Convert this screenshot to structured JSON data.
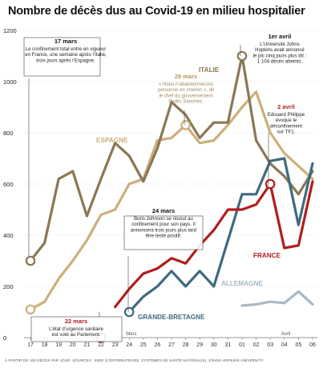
{
  "chart_data": {
    "type": "line",
    "title": "Nombre de décès dus au Covid-19 en milieu hospitalier",
    "x": [
      "17",
      "18",
      "19",
      "20",
      "21",
      "22",
      "23",
      "24",
      "25",
      "26",
      "27",
      "28",
      "29",
      "30",
      "31",
      "01",
      "02",
      "03",
      "04",
      "05",
      "06"
    ],
    "month_labels": [
      {
        "text": "Mars",
        "at": "24"
      },
      {
        "text": "Avril",
        "at": "04"
      }
    ],
    "ylim": [
      0,
      1200
    ],
    "yticks": [
      0,
      200,
      400,
      600,
      800,
      1000,
      1200
    ],
    "grid": true,
    "series": [
      {
        "name": "ITALIE",
        "color": "#8a7755",
        "values": [
          300,
          370,
          620,
          650,
          475,
          620,
          760,
          710,
          610,
          740,
          920,
          870,
          780,
          840,
          840,
          1100,
          770,
          680,
          630,
          560,
          650
        ]
      },
      {
        "name": "ESPAGNE",
        "color": "#cbb07a",
        "values": [
          110,
          140,
          230,
          300,
          380,
          480,
          500,
          600,
          620,
          770,
          780,
          830,
          760,
          770,
          830,
          900,
          960,
          800,
          720,
          670,
          620
        ]
      },
      {
        "name": "FRANCE",
        "color": "#b21d1d",
        "values": [
          null,
          null,
          null,
          null,
          null,
          null,
          120,
          190,
          250,
          270,
          310,
          290,
          360,
          420,
          500,
          500,
          520,
          600,
          350,
          360,
          610
        ]
      },
      {
        "name": "GRANDE-BRETAGNE",
        "color": "#3f6a7f",
        "values": [
          null,
          null,
          null,
          null,
          null,
          null,
          null,
          100,
          160,
          200,
          260,
          200,
          260,
          200,
          380,
          560,
          560,
          690,
          700,
          440,
          680
        ]
      },
      {
        "name": "ALLEMAGNE",
        "color": "#a7b9c6",
        "values": [
          null,
          null,
          null,
          null,
          null,
          null,
          null,
          null,
          null,
          null,
          null,
          null,
          null,
          null,
          null,
          125,
          130,
          140,
          135,
          180,
          130
        ]
      }
    ],
    "markers": [
      {
        "series": "ITALIE",
        "x": "17"
      },
      {
        "series": "ITALIE",
        "x": "01"
      },
      {
        "series": "ESPAGNE",
        "x": "17"
      },
      {
        "series": "ESPAGNE",
        "x": "28"
      },
      {
        "series": "FRANCE",
        "x": "22"
      },
      {
        "series": "FRANCE",
        "x": "03"
      },
      {
        "series": "GRANDE-BRETAGNE",
        "x": "24"
      }
    ],
    "series_labels": [
      {
        "series": "ITALIE",
        "text": "ITALIE"
      },
      {
        "series": "ESPAGNE",
        "text": "ESPAGNE"
      },
      {
        "series": "FRANCE",
        "text": "FRANCE"
      },
      {
        "series": "GRANDE-BRETAGNE",
        "text": "GRANDE-BRETAGNE"
      },
      {
        "series": "ALLEMAGNE",
        "text": "ALLEMAGNE"
      }
    ],
    "annotations": [
      {
        "date": "17 mars",
        "date_color": "#111111",
        "lines": [
          "Le confinement total entre en vigueur",
          "en France, une semaine après l’Italie,",
          "trois jours après l’Espagne."
        ],
        "boxed": true,
        "italic": false
      },
      {
        "date": "28 mars",
        "date_color": "#b8975a",
        "lines": [
          "« Nous n’abandonnerons",
          "personne en chemin », dit",
          "le chef du gouvernement",
          "Pedro Sanchez."
        ],
        "boxed": false,
        "italic": false
      },
      {
        "date": "1er avril",
        "date_color": "#111111",
        "lines": [
          "L’Université Johns",
          "Hopkins avait annoncé",
          "le pic cinq jours plus tôt :",
          "1 104 décès atteints."
        ],
        "boxed": false,
        "italic": false
      },
      {
        "date": "2 avril",
        "date_color": "#b21d1d",
        "lines": [
          "Edouard Philippe",
          "évoque le",
          "déconfinement",
          "sur TF1."
        ],
        "boxed": false,
        "italic": false
      },
      {
        "date": "24 mars",
        "date_color": "#111111",
        "lines": [
          "Boris Johnson se résout au",
          "confinement pour son pays. Il",
          "annoncera trois jours plus tard",
          "être testé positif."
        ],
        "boxed": true,
        "italic": false
      },
      {
        "date": "22 mars",
        "date_color": "#b21d1d",
        "lines": [
          "L’état d’urgence sanitaire",
          "est voté au Parlement."
        ],
        "boxed": true,
        "italic": false
      }
    ],
    "source": "À PARTIR DE 100 DÉCÈS PAR JOUR. SOURCES : INED (CONTRIBUTEURS, SYSTÈMES DE SANTÉ NATIONAUX), JOHNS HOPKINS UNIVERSITY"
  }
}
